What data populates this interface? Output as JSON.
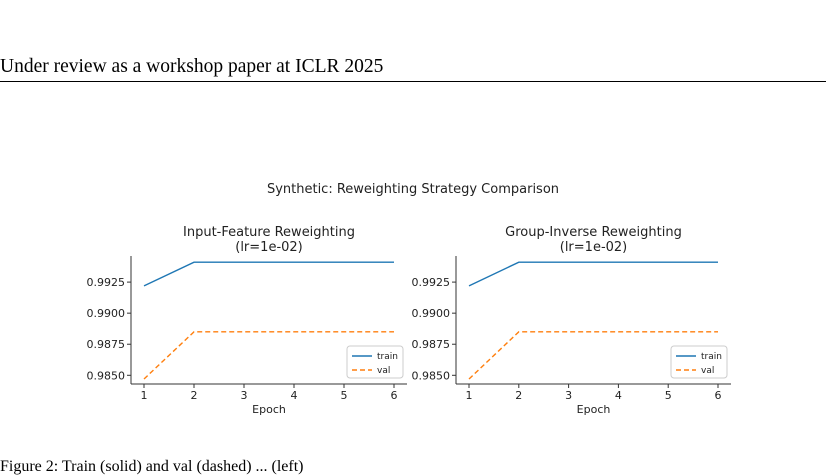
{
  "header": {
    "text": "Under review as a workshop paper at ICLR 2025"
  },
  "figure": {
    "suptitle": "Synthetic: Reweighting Strategy Comparison"
  },
  "caption": {
    "text": "Figure 2: Train (solid) and val (dashed) ... (left)"
  },
  "colors": {
    "train": "#1f77b4",
    "val": "#ff7f0e"
  },
  "chart_data": [
    {
      "type": "line",
      "title": "Input-Feature Reweighting",
      "subtitle": "(lr=1e-02)",
      "xlabel": "Epoch",
      "ylabel": "",
      "x": [
        1,
        2,
        3,
        4,
        5,
        6
      ],
      "xticks": [
        "1",
        "2",
        "3",
        "4",
        "5",
        "6"
      ],
      "ylim": [
        0.9843,
        0.9946
      ],
      "yticks": [
        "0.9850",
        "0.9875",
        "0.9900",
        "0.9925"
      ],
      "legend": "lower-right",
      "series": [
        {
          "name": "train",
          "style": "solid",
          "values": [
            0.9922,
            0.9941,
            0.9941,
            0.9941,
            0.9941,
            0.9941
          ]
        },
        {
          "name": "val",
          "style": "dashed",
          "values": [
            0.9847,
            0.9885,
            0.9885,
            0.9885,
            0.9885,
            0.9885
          ]
        }
      ]
    },
    {
      "type": "line",
      "title": "Group-Inverse Reweighting",
      "subtitle": "(lr=1e-02)",
      "xlabel": "Epoch",
      "ylabel": "",
      "x": [
        1,
        2,
        3,
        4,
        5,
        6
      ],
      "xticks": [
        "1",
        "2",
        "3",
        "4",
        "5",
        "6"
      ],
      "ylim": [
        0.9843,
        0.9946
      ],
      "yticks": [
        "0.9850",
        "0.9875",
        "0.9900",
        "0.9925"
      ],
      "legend": "lower-right",
      "series": [
        {
          "name": "train",
          "style": "solid",
          "values": [
            0.9922,
            0.9941,
            0.9941,
            0.9941,
            0.9941,
            0.9941
          ]
        },
        {
          "name": "val",
          "style": "dashed",
          "values": [
            0.9847,
            0.9885,
            0.9885,
            0.9885,
            0.9885,
            0.9885
          ]
        }
      ]
    }
  ]
}
